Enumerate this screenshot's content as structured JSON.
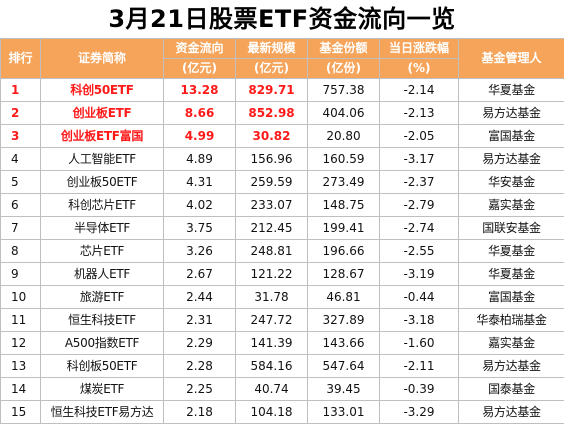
{
  "title": "3月21日股票ETF资金流向一览",
  "headers": {
    "rank": [
      "排行"
    ],
    "name": [
      "证券简称"
    ],
    "flow": [
      "资金流向",
      "(亿元)"
    ],
    "scale": [
      "最新规模",
      "(亿元)"
    ],
    "shares": [
      "基金份额",
      "(亿份)"
    ],
    "change": [
      "当日涨跌幅",
      "(%)"
    ],
    "manager": [
      "基金管理人"
    ]
  },
  "rows": [
    {
      "rank": "1",
      "name": "科创50ETF",
      "flow": "13.28",
      "scale": "829.71",
      "shares": "757.38",
      "change": "-2.14",
      "manager": "华夏基金",
      "highlight": true
    },
    {
      "rank": "2",
      "name": "创业板ETF",
      "flow": "8.66",
      "scale": "852.98",
      "shares": "404.06",
      "change": "-2.13",
      "manager": "易方达基金",
      "highlight": true
    },
    {
      "rank": "3",
      "name": "创业板ETF富国",
      "flow": "4.99",
      "scale": "30.82",
      "shares": "20.80",
      "change": "-2.05",
      "manager": "富国基金",
      "highlight": true
    },
    {
      "rank": "4",
      "name": "人工智能ETF",
      "flow": "4.89",
      "scale": "156.96",
      "shares": "160.59",
      "change": "-3.17",
      "manager": "易方达基金",
      "highlight": false
    },
    {
      "rank": "5",
      "name": "创业板50ETF",
      "flow": "4.31",
      "scale": "259.59",
      "shares": "273.49",
      "change": "-2.37",
      "manager": "华安基金",
      "highlight": false
    },
    {
      "rank": "6",
      "name": "科创芯片ETF",
      "flow": "4.02",
      "scale": "233.07",
      "shares": "148.75",
      "change": "-2.79",
      "manager": "嘉实基金",
      "highlight": false
    },
    {
      "rank": "7",
      "name": "半导体ETF",
      "flow": "3.75",
      "scale": "212.45",
      "shares": "199.41",
      "change": "-2.74",
      "manager": "国联安基金",
      "highlight": false
    },
    {
      "rank": "8",
      "name": "芯片ETF",
      "flow": "3.26",
      "scale": "248.81",
      "shares": "196.66",
      "change": "-2.55",
      "manager": "华夏基金",
      "highlight": false
    },
    {
      "rank": "9",
      "name": "机器人ETF",
      "flow": "2.67",
      "scale": "121.22",
      "shares": "128.67",
      "change": "-3.19",
      "manager": "华夏基金",
      "highlight": false
    },
    {
      "rank": "10",
      "name": "旅游ETF",
      "flow": "2.44",
      "scale": "31.78",
      "shares": "46.81",
      "change": "-0.44",
      "manager": "富国基金",
      "highlight": false
    },
    {
      "rank": "11",
      "name": "恒生科技ETF",
      "flow": "2.31",
      "scale": "247.72",
      "shares": "327.89",
      "change": "-3.18",
      "manager": "华泰柏瑞基金",
      "highlight": false
    },
    {
      "rank": "12",
      "name": "A500指数ETF",
      "flow": "2.29",
      "scale": "141.39",
      "shares": "143.66",
      "change": "-1.60",
      "manager": "嘉实基金",
      "highlight": false
    },
    {
      "rank": "13",
      "name": "科创板50ETF",
      "flow": "2.28",
      "scale": "584.16",
      "shares": "547.64",
      "change": "-2.11",
      "manager": "易方达基金",
      "highlight": false
    },
    {
      "rank": "14",
      "name": "煤炭ETF",
      "flow": "2.25",
      "scale": "40.74",
      "shares": "39.45",
      "change": "-0.39",
      "manager": "国泰基金",
      "highlight": false
    },
    {
      "rank": "15",
      "name": "恒生科技ETF易方达",
      "flow": "2.18",
      "scale": "104.18",
      "shares": "133.01",
      "change": "-3.29",
      "manager": "易方达基金",
      "highlight": false
    }
  ]
}
